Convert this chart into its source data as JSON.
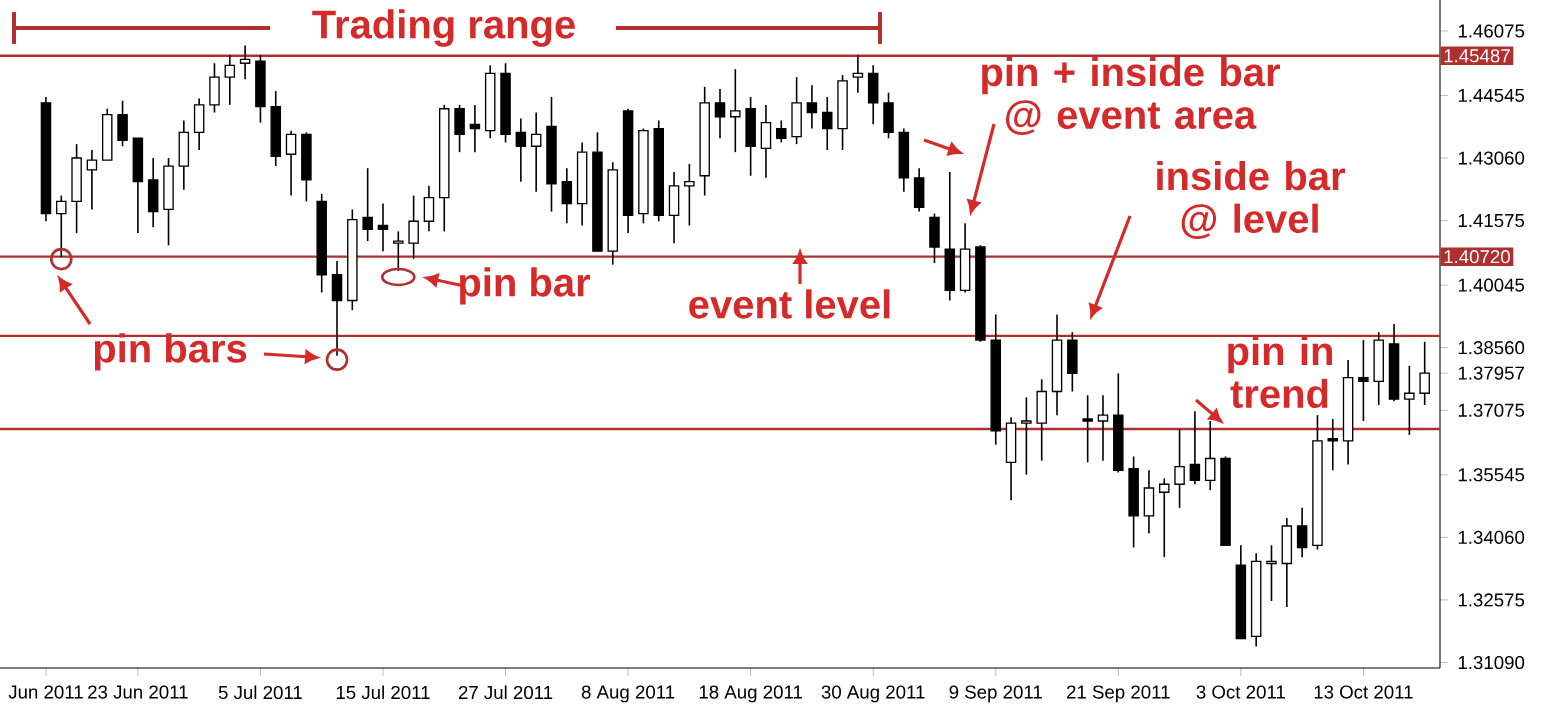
{
  "chart_data": {
    "type": "candlestick",
    "color": "#000000",
    "categories": [
      "Jun 2011",
      null,
      null,
      null,
      null,
      null,
      "23 Jun 2011",
      null,
      null,
      null,
      null,
      null,
      null,
      null,
      "5 Jul 2011",
      null,
      null,
      null,
      null,
      null,
      null,
      null,
      "15 Jul 2011",
      null,
      null,
      null,
      null,
      null,
      null,
      null,
      "27 Jul 2011",
      null,
      null,
      null,
      null,
      null,
      null,
      null,
      "8 Aug 2011",
      null,
      null,
      null,
      null,
      null,
      null,
      null,
      "18 Aug 2011",
      null,
      null,
      null,
      null,
      null,
      null,
      null,
      "30 Aug 2011",
      null,
      null,
      null,
      null,
      null,
      null,
      null,
      "9 Sep 2011",
      null,
      null,
      null,
      null,
      null,
      null,
      null,
      "21 Sep 2011",
      null,
      null,
      null,
      null,
      null,
      null,
      null,
      "3 Oct 2011",
      null,
      null,
      null,
      null,
      null,
      null,
      null,
      "13 Oct 2011",
      null,
      null,
      null,
      null
    ],
    "ohlc": [
      [
        1.4437,
        1.4451,
        1.4156,
        1.4174
      ],
      [
        1.4174,
        1.4217,
        1.4071,
        1.4203
      ],
      [
        1.4203,
        1.4339,
        1.4128,
        1.4306
      ],
      [
        1.4278,
        1.4325,
        1.4184,
        1.4301
      ],
      [
        1.4301,
        1.4423,
        1.4301,
        1.4409
      ],
      [
        1.4409,
        1.4442,
        1.4334,
        1.4348
      ],
      [
        1.4353,
        1.4353,
        1.4128,
        1.425
      ],
      [
        1.4254,
        1.4306,
        1.4142,
        1.4179
      ],
      [
        1.4184,
        1.4306,
        1.4099,
        1.4287
      ],
      [
        1.4287,
        1.4395,
        1.4231,
        1.4367
      ],
      [
        1.4367,
        1.4447,
        1.4325,
        1.4432
      ],
      [
        1.4432,
        1.4531,
        1.4414,
        1.4498
      ],
      [
        1.4498,
        1.455,
        1.4432,
        1.4526
      ],
      [
        1.4531,
        1.4573,
        1.4493,
        1.454
      ],
      [
        1.4536,
        1.455,
        1.439,
        1.4428
      ],
      [
        1.4428,
        1.4465,
        1.4287,
        1.431
      ],
      [
        1.4315,
        1.4371,
        1.4217,
        1.4362
      ],
      [
        1.4362,
        1.4367,
        1.4203,
        1.4254
      ],
      [
        1.4203,
        1.4221,
        1.3987,
        1.4029
      ],
      [
        1.4029,
        1.4062,
        1.3837,
        1.3968
      ],
      [
        1.3968,
        1.4184,
        1.3945,
        1.416
      ],
      [
        1.4165,
        1.4282,
        1.4109,
        1.4137
      ],
      [
        1.4146,
        1.4198,
        1.4085,
        1.4137
      ],
      [
        1.4104,
        1.4132,
        1.4038,
        1.4109
      ],
      [
        1.4104,
        1.4217,
        1.4067,
        1.4156
      ],
      [
        1.4156,
        1.424,
        1.4132,
        1.4212
      ],
      [
        1.4212,
        1.4432,
        1.4132,
        1.4423
      ],
      [
        1.4423,
        1.4432,
        1.432,
        1.4362
      ],
      [
        1.4386,
        1.4432,
        1.432,
        1.4376
      ],
      [
        1.4371,
        1.4526,
        1.4353,
        1.4507
      ],
      [
        1.4507,
        1.4531,
        1.4343,
        1.4362
      ],
      [
        1.4367,
        1.44,
        1.425,
        1.4334
      ],
      [
        1.4334,
        1.4414,
        1.4226,
        1.4362
      ],
      [
        1.4381,
        1.4451,
        1.4179,
        1.4245
      ],
      [
        1.425,
        1.4282,
        1.4151,
        1.4198
      ],
      [
        1.4198,
        1.4343,
        1.4146,
        1.432
      ],
      [
        1.432,
        1.4367,
        1.4085,
        1.4085
      ],
      [
        1.4085,
        1.4296,
        1.4053,
        1.4278
      ],
      [
        1.4418,
        1.4423,
        1.4128,
        1.417
      ],
      [
        1.4174,
        1.4376,
        1.4151,
        1.4371
      ],
      [
        1.4376,
        1.4395,
        1.4156,
        1.417
      ],
      [
        1.417,
        1.4273,
        1.4104,
        1.424
      ],
      [
        1.424,
        1.4292,
        1.4146,
        1.425
      ],
      [
        1.4264,
        1.4475,
        1.4217,
        1.4437
      ],
      [
        1.4437,
        1.447,
        1.4353,
        1.4404
      ],
      [
        1.4404,
        1.4517,
        1.432,
        1.4418
      ],
      [
        1.4423,
        1.4451,
        1.4264,
        1.4334
      ],
      [
        1.4329,
        1.4432,
        1.4259,
        1.439
      ],
      [
        1.4376,
        1.4395,
        1.4343,
        1.4353
      ],
      [
        1.4357,
        1.4498,
        1.4339,
        1.4437
      ],
      [
        1.4437,
        1.4479,
        1.4376,
        1.4414
      ],
      [
        1.4414,
        1.4451,
        1.4325,
        1.4376
      ],
      [
        1.4376,
        1.4503,
        1.4325,
        1.4489
      ],
      [
        1.4498,
        1.455,
        1.4461,
        1.4507
      ],
      [
        1.4507,
        1.4526,
        1.4386,
        1.4437
      ],
      [
        1.4437,
        1.4461,
        1.4353,
        1.4367
      ],
      [
        1.4367,
        1.4376,
        1.4226,
        1.4259
      ],
      [
        1.4259,
        1.4282,
        1.4179,
        1.4189
      ],
      [
        1.4165,
        1.4174,
        1.4057,
        1.4095
      ],
      [
        1.409,
        1.4273,
        1.3968,
        1.3992
      ],
      [
        1.3992,
        1.4151,
        1.3987,
        1.409
      ],
      [
        1.4095,
        1.4099,
        1.387,
        1.3874
      ],
      [
        1.3874,
        1.3935,
        1.3626,
        1.3659
      ],
      [
        1.3584,
        1.3691,
        1.3494,
        1.3677
      ],
      [
        1.3677,
        1.3738,
        1.3555,
        1.3682
      ],
      [
        1.3677,
        1.3781,
        1.3588,
        1.3752
      ],
      [
        1.3752,
        1.3935,
        1.3696,
        1.3874
      ],
      [
        1.3874,
        1.3893,
        1.3752,
        1.3795
      ],
      [
        1.3687,
        1.3743,
        1.3584,
        1.3682
      ],
      [
        1.3682,
        1.3743,
        1.3588,
        1.3696
      ],
      [
        1.3696,
        1.3795,
        1.356,
        1.3565
      ],
      [
        1.3569,
        1.3598,
        1.3382,
        1.3457
      ],
      [
        1.3457,
        1.3565,
        1.3415,
        1.3523
      ],
      [
        1.3513,
        1.3546,
        1.3359,
        1.3532
      ],
      [
        1.3532,
        1.3663,
        1.3476,
        1.3574
      ],
      [
        1.3579,
        1.3705,
        1.3532,
        1.3541
      ],
      [
        1.3541,
        1.3682,
        1.3518,
        1.3593
      ],
      [
        1.3593,
        1.3598,
        1.3387,
        1.3387
      ],
      [
        1.334,
        1.3387,
        1.3166,
        1.3166
      ],
      [
        1.3171,
        1.3368,
        1.3147,
        1.3349
      ],
      [
        1.3344,
        1.3387,
        1.3255,
        1.3349
      ],
      [
        1.3344,
        1.3452,
        1.3241,
        1.3433
      ],
      [
        1.3433,
        1.3476,
        1.3359,
        1.3382
      ],
      [
        1.3387,
        1.3696,
        1.3377,
        1.3635
      ],
      [
        1.364,
        1.3687,
        1.3565,
        1.3635
      ],
      [
        1.3635,
        1.3827,
        1.3579,
        1.3785
      ],
      [
        1.3785,
        1.3874,
        1.3682,
        1.3776
      ],
      [
        1.3776,
        1.3893,
        1.372,
        1.3874
      ],
      [
        1.3865,
        1.3912,
        1.3729,
        1.3734
      ],
      [
        1.3734,
        1.3813,
        1.3649,
        1.3748
      ],
      [
        1.3748,
        1.387,
        1.372,
        1.37957
      ]
    ],
    "ylim": [
      1.3096,
      1.4681
    ],
    "yticks": [
      1.46075,
      1.44545,
      {
        "value": 1.4306,
        "label": "1.43060"
      },
      1.41575,
      1.40045,
      {
        "value": 1.3856,
        "label": "1.38560"
      },
      1.37075,
      1.35545,
      {
        "value": 1.3406,
        "label": "1.34060"
      },
      1.32575,
      {
        "value": 1.3109,
        "label": "1.31090"
      },
      1.37957
    ],
    "ref_lines": [
      {
        "axis": "y",
        "value": 1.45487,
        "label": "1.45487",
        "color": "#b03030"
      },
      {
        "axis": "y",
        "value": 1.4072,
        "label": "1.40720",
        "color": "#b03030"
      },
      {
        "axis": "y",
        "value": 1.3884,
        "color": "#b03030"
      },
      {
        "axis": "y",
        "value": 1.3663,
        "color": "#b03030"
      }
    ],
    "annotations": [
      "Trading range",
      "pin bars",
      "pin bar",
      "event level",
      "pin + inside bar @ event area",
      "inside bar @ level",
      "pin in trend"
    ]
  }
}
